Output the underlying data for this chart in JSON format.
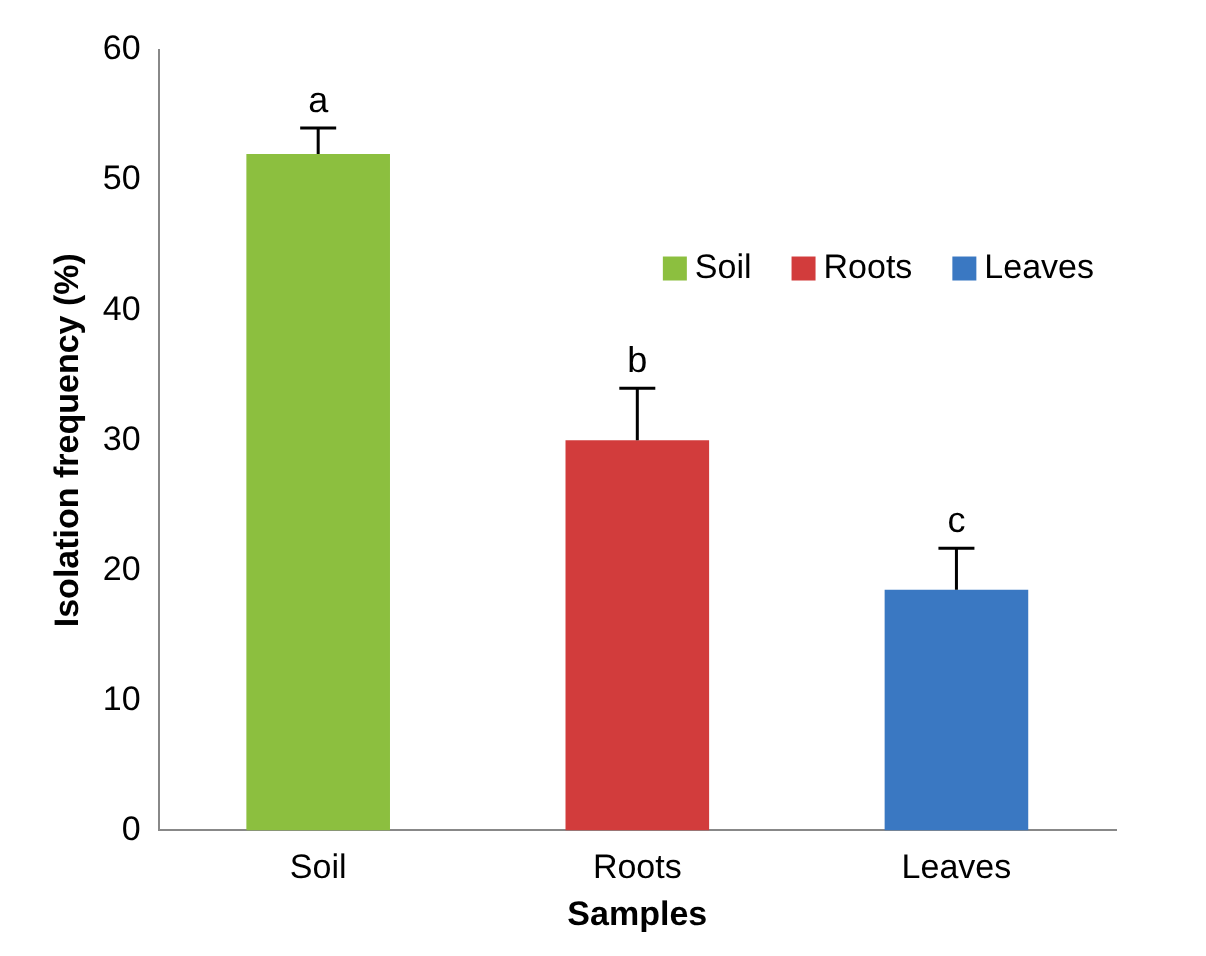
{
  "chart_data": {
    "type": "bar",
    "xlabel": "Samples",
    "ylabel": "Isolation frequency (%)",
    "categories": [
      "Soil",
      "Roots",
      "Leaves"
    ],
    "series": [
      {
        "name": "Soil",
        "color": "#8cbf3f",
        "values": [
          52,
          null,
          null
        ],
        "errors": [
          [
            52,
            54
          ],
          null,
          null
        ]
      },
      {
        "name": "Roots",
        "color": "#d23c3c",
        "values": [
          null,
          30,
          null
        ],
        "errors": [
          null,
          [
            30,
            34
          ],
          null
        ]
      },
      {
        "name": "Leaves",
        "color": "#3a78c2",
        "values": [
          null,
          null,
          18.5
        ],
        "errors": [
          null,
          null,
          [
            18.5,
            21.7
          ]
        ]
      }
    ],
    "annotations": [
      {
        "text": "a",
        "x": "Soil",
        "y": 54
      },
      {
        "text": "b",
        "x": "Roots",
        "y": 34
      },
      {
        "text": "c",
        "x": "Leaves",
        "y": 21.7
      }
    ],
    "ylim": [
      0,
      60
    ],
    "yticks": [
      0,
      10,
      20,
      30,
      40,
      50,
      60
    ],
    "grid": false,
    "legend": "top right"
  }
}
